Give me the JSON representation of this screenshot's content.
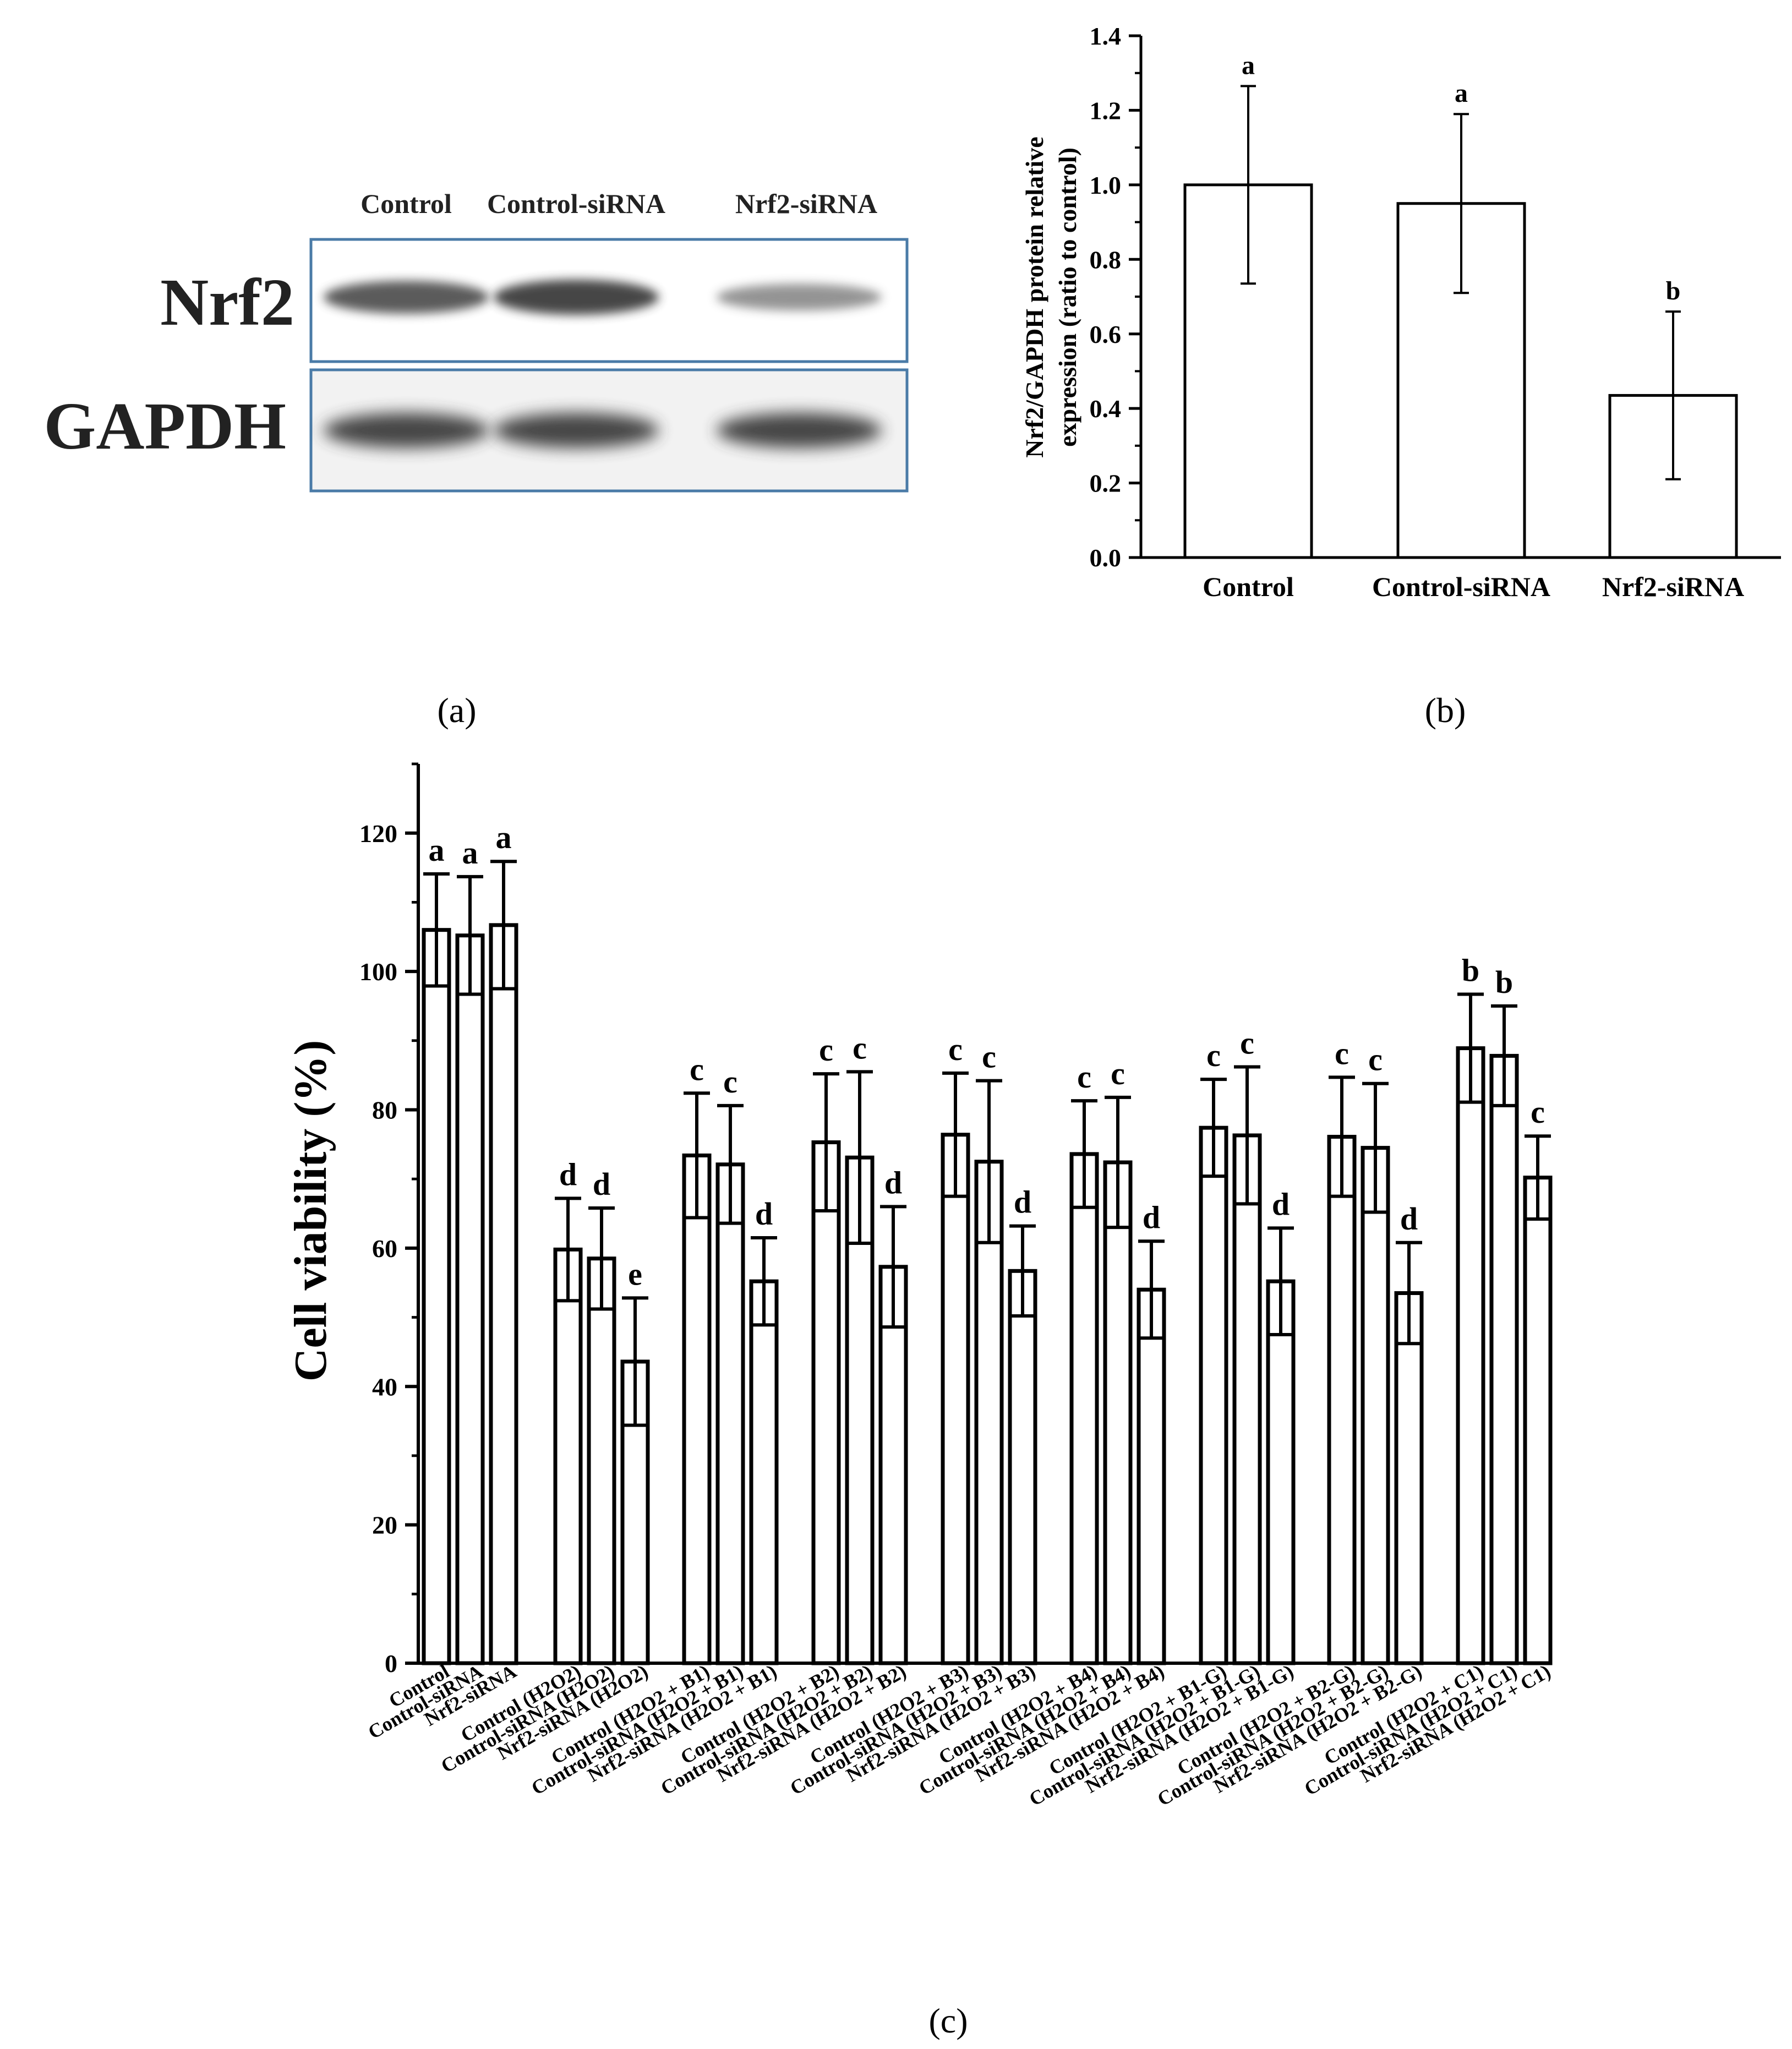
{
  "panels": {
    "a": {
      "caption": "(a)",
      "lane_labels": [
        "Control",
        "Control-siRNA",
        "Nrf2-siRNA"
      ],
      "rows": [
        {
          "label": "Nrf2",
          "band_intensity": [
            0.85,
            1.0,
            0.45
          ]
        },
        {
          "label": "GAPDH",
          "band_intensity": [
            1.0,
            1.0,
            1.0
          ]
        }
      ]
    },
    "b": {
      "caption": "(b)"
    },
    "c": {
      "caption": "(c)"
    }
  },
  "chart_data": [
    {
      "type": "bar",
      "panel": "b",
      "categories": [
        "Control",
        "Control-siRNA",
        "Nrf2-siRNA"
      ],
      "values": [
        1.0,
        0.95,
        0.435
      ],
      "errors": [
        0.265,
        0.24,
        0.225
      ],
      "letters": [
        "a",
        "a",
        "b"
      ],
      "ylabel": "Nrf2/GAPDH protein relative expression (ratio to control)",
      "ylabel_lines": [
        "Nrf2/GAPDH protein relative",
        "expression (ratio to control)"
      ],
      "ylim": [
        0,
        1.4
      ],
      "yticks": [
        "0.0",
        "0.2",
        "0.4",
        "0.6",
        "0.8",
        "1.0",
        "1.2",
        "1.4"
      ]
    },
    {
      "type": "bar",
      "panel": "c",
      "ylabel": "Cell viability (%)",
      "ylim": [
        0,
        130
      ],
      "yticks": [
        "0",
        "20",
        "40",
        "60",
        "80",
        "100",
        "120"
      ],
      "categories": [
        "Control",
        "Control-siRNA",
        "Nrf2-siRNA",
        "Control (H2O2)",
        "Control-siRNA (H2O2)",
        "Nrf2-siRNA (H2O2)",
        "Control (H2O2 + B1)",
        "Control-siRNA (H2O2 + B1)",
        "Nrf2-siRNA (H2O2 + B1)",
        "Control (H2O2 + B2)",
        "Control-siRNA (H2O2 + B2)",
        "Nrf2-siRNA (H2O2 + B2)",
        "Control (H2O2 + B3)",
        "Control-siRNA (H2O2 + B3)",
        "Nrf2-siRNA (H2O2 + B3)",
        "Control (H2O2 + B4)",
        "Control-siRNA (H2O2 + B4)",
        "Nrf2-siRNA (H2O2 + B4)",
        "Control (H2O2 + B1-G)",
        "Control-siRNA (H2O2 + B1-G)",
        "Nrf2-siRNA (H2O2 + B1-G)",
        "Control (H2O2 + B2-G)",
        "Control-siRNA (H2O2 + B2-G)",
        "Nrf2-siRNA (H2O2 + B2-G)",
        "Control (H2O2 + C1)",
        "Control-siRNA (H2O2 + C1)",
        "Nrf2-siRNA (H2O2 + C1)"
      ],
      "values": [
        106,
        105.2,
        106.7,
        59.8,
        58.5,
        43.6,
        73.4,
        72.1,
        55.2,
        75.3,
        73.1,
        57.3,
        76.4,
        72.5,
        56.7,
        73.6,
        72.4,
        54.0,
        77.4,
        76.3,
        55.2,
        76.1,
        74.5,
        53.5,
        88.9,
        87.8,
        70.2
      ],
      "errors": [
        8.1,
        8.5,
        9.2,
        7.4,
        7.3,
        9.2,
        9.0,
        8.5,
        6.3,
        9.9,
        12.4,
        8.7,
        8.9,
        11.7,
        6.5,
        7.7,
        9.4,
        7.0,
        7.0,
        9.9,
        7.7,
        8.6,
        9.3,
        7.3,
        7.8,
        7.2,
        6.0
      ],
      "letters": [
        "a",
        "a",
        "a",
        "d",
        "d",
        "e",
        "c",
        "c",
        "d",
        "c",
        "c",
        "d",
        "c",
        "c",
        "d",
        "c",
        "c",
        "d",
        "c",
        "c",
        "d",
        "c",
        "c",
        "d",
        "b",
        "b",
        "c"
      ]
    }
  ]
}
